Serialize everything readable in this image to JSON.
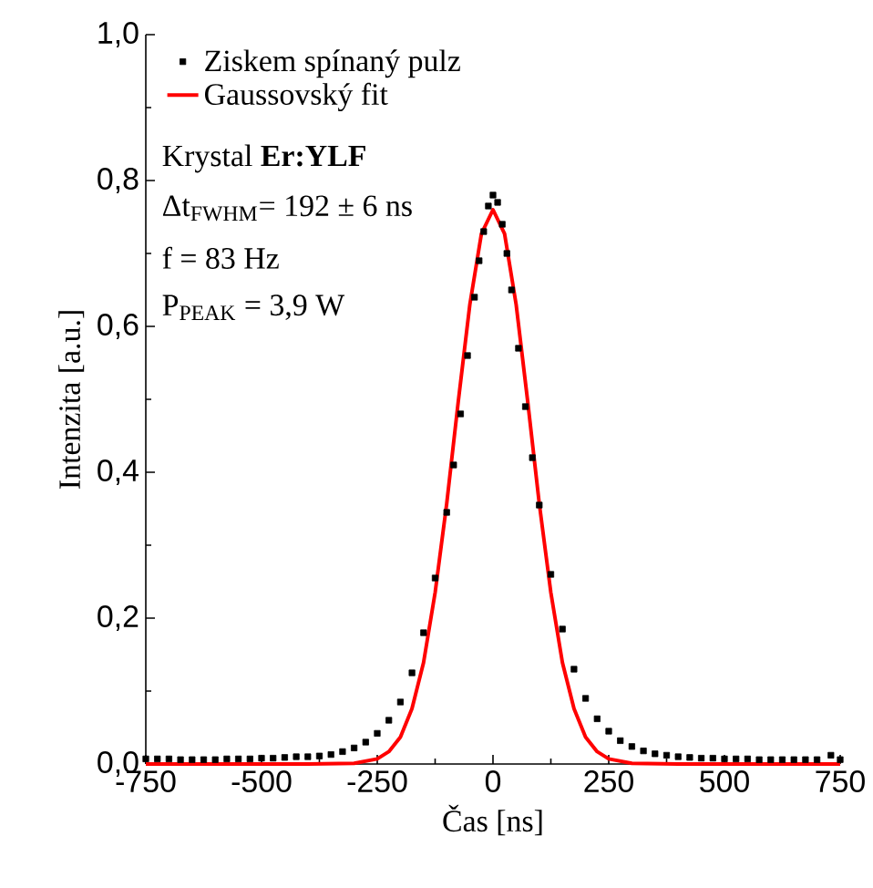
{
  "chart_data": {
    "type": "scatter",
    "xlabel": "Čas [ns]",
    "ylabel": "Intenzita [a.u.]",
    "xlim": [
      -750,
      750
    ],
    "xticks": [
      -750,
      -500,
      -250,
      0,
      250,
      500,
      750
    ],
    "ylim": [
      0,
      1
    ],
    "yticks": [
      {
        "value": 0,
        "label": "0,0"
      },
      {
        "value": 0.2,
        "label": "0,2"
      },
      {
        "value": 0.4,
        "label": "0,4"
      },
      {
        "value": 0.6,
        "label": "0,6"
      },
      {
        "value": 0.8,
        "label": "0,8"
      },
      {
        "value": 1,
        "label": "1,0"
      }
    ],
    "legend": "top left",
    "grid": false,
    "annotations": [
      "Krystal **Er:YLF**",
      "Δt$_{FWHM}$= 192 ± 6 ns",
      "f = 83 Hz",
      "P$_{PEAK}$ = 3,9 W"
    ],
    "series": [
      {
        "name": "Ziskem spínaný pulz",
        "marker": "square",
        "color": "#000000",
        "x": [
          -750,
          -725,
          -700,
          -675,
          -650,
          -625,
          -600,
          -575,
          -550,
          -525,
          -500,
          -475,
          -450,
          -425,
          -400,
          -375,
          -350,
          -325,
          -300,
          -275,
          -250,
          -225,
          -200,
          -175,
          -150,
          -125,
          -100,
          -85,
          -70,
          -55,
          -40,
          -30,
          -20,
          -10,
          0,
          10,
          20,
          30,
          40,
          55,
          70,
          85,
          100,
          125,
          150,
          175,
          200,
          225,
          250,
          275,
          300,
          325,
          350,
          375,
          400,
          425,
          450,
          475,
          500,
          525,
          550,
          575,
          600,
          625,
          650,
          675,
          700,
          730,
          750
        ],
        "values": [
          0.007,
          0.007,
          0.007,
          0.006,
          0.006,
          0.006,
          0.006,
          0.007,
          0.007,
          0.007,
          0.008,
          0.008,
          0.009,
          0.01,
          0.01,
          0.011,
          0.013,
          0.017,
          0.022,
          0.03,
          0.042,
          0.06,
          0.085,
          0.125,
          0.18,
          0.255,
          0.345,
          0.41,
          0.48,
          0.56,
          0.64,
          0.69,
          0.73,
          0.765,
          0.78,
          0.77,
          0.74,
          0.7,
          0.65,
          0.57,
          0.49,
          0.42,
          0.355,
          0.26,
          0.185,
          0.13,
          0.09,
          0.062,
          0.045,
          0.032,
          0.024,
          0.018,
          0.014,
          0.012,
          0.01,
          0.009,
          0.008,
          0.008,
          0.007,
          0.007,
          0.007,
          0.006,
          0.006,
          0.006,
          0.006,
          0.006,
          0.006,
          0.012,
          0.006
        ]
      },
      {
        "name": "Gaussovský fit",
        "type": "line",
        "color": "#ff0000",
        "x": [
          -750,
          -400,
          -300,
          -250,
          -225,
          -200,
          -175,
          -150,
          -125,
          -100,
          -75,
          -50,
          -25,
          0,
          25,
          50,
          75,
          100,
          125,
          150,
          175,
          200,
          225,
          250,
          300,
          400,
          750
        ],
        "values": [
          0,
          0,
          0.001,
          0.007,
          0.017,
          0.037,
          0.076,
          0.139,
          0.235,
          0.357,
          0.497,
          0.63,
          0.727,
          0.76,
          0.727,
          0.63,
          0.497,
          0.357,
          0.235,
          0.139,
          0.076,
          0.037,
          0.017,
          0.007,
          0.001,
          0,
          0
        ]
      }
    ]
  }
}
